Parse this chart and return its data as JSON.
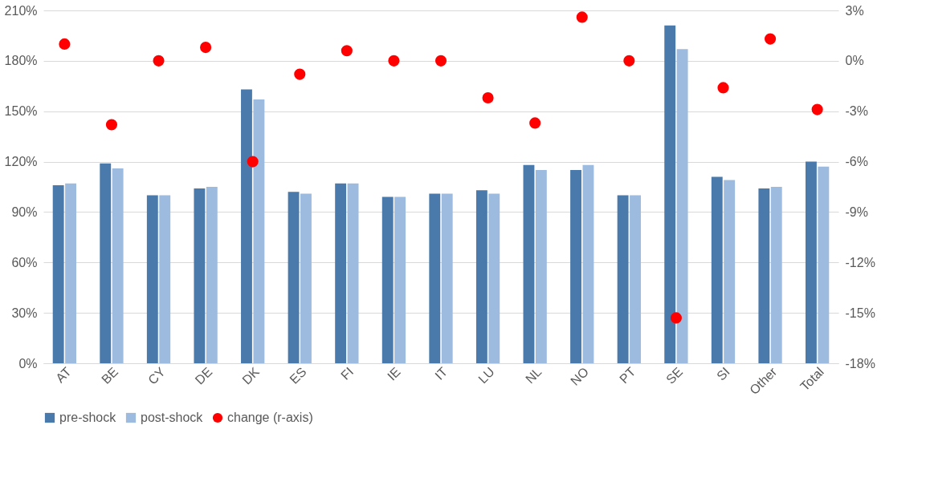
{
  "chart_data": {
    "type": "bar",
    "categories": [
      "AT",
      "BE",
      "CY",
      "DE",
      "DK",
      "ES",
      "FI",
      "IE",
      "IT",
      "LU",
      "NL",
      "NO",
      "PT",
      "SE",
      "SI",
      "Other",
      "Total"
    ],
    "series": [
      {
        "name": "pre-shock",
        "color": "#4a7aab",
        "values": [
          106,
          119,
          100,
          104,
          163,
          102,
          107,
          99,
          101,
          103,
          118,
          115,
          100,
          201,
          111,
          104,
          120
        ]
      },
      {
        "name": "post-shock",
        "color": "#9dbbde",
        "values": [
          107,
          116,
          100,
          105,
          157,
          101,
          107,
          99,
          101,
          101,
          115,
          118,
          100,
          187,
          109,
          105,
          117
        ]
      },
      {
        "name": "change (r-axis)",
        "type": "scatter",
        "axis": "y2",
        "color": "#ff0000",
        "values": [
          1.0,
          -3.8,
          0,
          0.8,
          -6.0,
          -0.8,
          0.6,
          0,
          0,
          -2.2,
          -3.7,
          2.6,
          0,
          -15.3,
          -1.6,
          1.3,
          -2.9
        ]
      }
    ],
    "ylim": [
      0,
      210
    ],
    "yticks": [
      {
        "value": 0,
        "label": "0%"
      },
      {
        "value": 30,
        "label": "30%"
      },
      {
        "value": 60,
        "label": "60%"
      },
      {
        "value": 90,
        "label": "90%"
      },
      {
        "value": 120,
        "label": "120%"
      },
      {
        "value": 150,
        "label": "150%"
      },
      {
        "value": 180,
        "label": "180%"
      },
      {
        "value": 210,
        "label": "210%"
      }
    ],
    "y2lim": [
      -18,
      3
    ],
    "y2ticks": [
      {
        "value": -18,
        "label": "-18%"
      },
      {
        "value": -15,
        "label": "-15%"
      },
      {
        "value": -12,
        "label": "-12%"
      },
      {
        "value": -9,
        "label": "-9%"
      },
      {
        "value": -6,
        "label": "-6%"
      },
      {
        "value": -3,
        "label": "-3%"
      },
      {
        "value": 0,
        "label": "0%"
      },
      {
        "value": 3,
        "label": "3%"
      }
    ],
    "grid": "y",
    "legend": "bottom",
    "marker": "circle"
  }
}
